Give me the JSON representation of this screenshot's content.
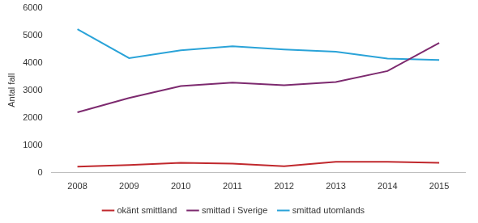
{
  "chart_data": {
    "type": "line",
    "ylabel": "Antal fall",
    "categories": [
      "2008",
      "2009",
      "2010",
      "2011",
      "2012",
      "2013",
      "2014",
      "2015"
    ],
    "series": [
      {
        "name": "okänt smittland",
        "color": "#c0282d",
        "values": [
          220,
          280,
          360,
          330,
          240,
          400,
          400,
          360
        ]
      },
      {
        "name": "smittad i Sverige",
        "color": "#7d2a6f",
        "values": [
          2200,
          2720,
          3150,
          3280,
          3180,
          3300,
          3700,
          4720
        ]
      },
      {
        "name": "smittad utomlands",
        "color": "#2aa3d8",
        "values": [
          5220,
          4170,
          4450,
          4600,
          4480,
          4400,
          4150,
          4100
        ]
      }
    ],
    "ylim": [
      0,
      6000
    ],
    "yticks": [
      0,
      1000,
      2000,
      3000,
      4000,
      5000,
      6000
    ],
    "grid": false,
    "legend": "bottom",
    "marker": "none"
  }
}
